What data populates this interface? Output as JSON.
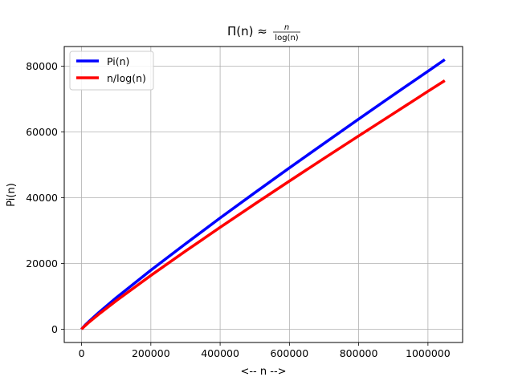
{
  "chart_data": {
    "type": "line",
    "title_main": "Π(n) ≈ ",
    "title_frac_num": "n",
    "title_frac_den": "log(n)",
    "xlabel": "<-- n -->",
    "ylabel": "Pi(n)",
    "xlim": [
      -50000,
      1100000
    ],
    "ylim": [
      -4000,
      86000
    ],
    "xticks": [
      0,
      200000,
      400000,
      600000,
      800000,
      1000000
    ],
    "xtick_labels": [
      "0",
      "200000",
      "400000",
      "600000",
      "800000",
      "1000000"
    ],
    "yticks": [
      0,
      20000,
      40000,
      60000,
      80000
    ],
    "ytick_labels": [
      "0",
      "20000",
      "40000",
      "60000",
      "80000"
    ],
    "grid": true,
    "legend_position": "top-left",
    "series": [
      {
        "name": "Pi(n)",
        "color": "#0000ff",
        "x": [
          1,
          1000,
          5000,
          10000,
          20000,
          50000,
          100000,
          200000,
          300000,
          400000,
          500000,
          600000,
          700000,
          800000,
          900000,
          1000000,
          1048576
        ],
        "y": [
          0,
          168,
          669,
          1229,
          2262,
          5133,
          9592,
          17984,
          25997,
          33860,
          41538,
          49098,
          56543,
          63951,
          71274,
          78498,
          82025
        ]
      },
      {
        "name": "n/log(n)",
        "color": "#ff0000",
        "x": [
          1,
          1000,
          5000,
          10000,
          20000,
          50000,
          100000,
          200000,
          300000,
          400000,
          500000,
          600000,
          700000,
          800000,
          900000,
          1000000,
          1048576
        ],
        "y": [
          0,
          145,
          587,
          1086,
          2019,
          4621,
          8686,
          16385,
          23788,
          31010,
          38102,
          45090,
          51992,
          58820,
          65584,
          72382,
          75638
        ]
      }
    ]
  }
}
